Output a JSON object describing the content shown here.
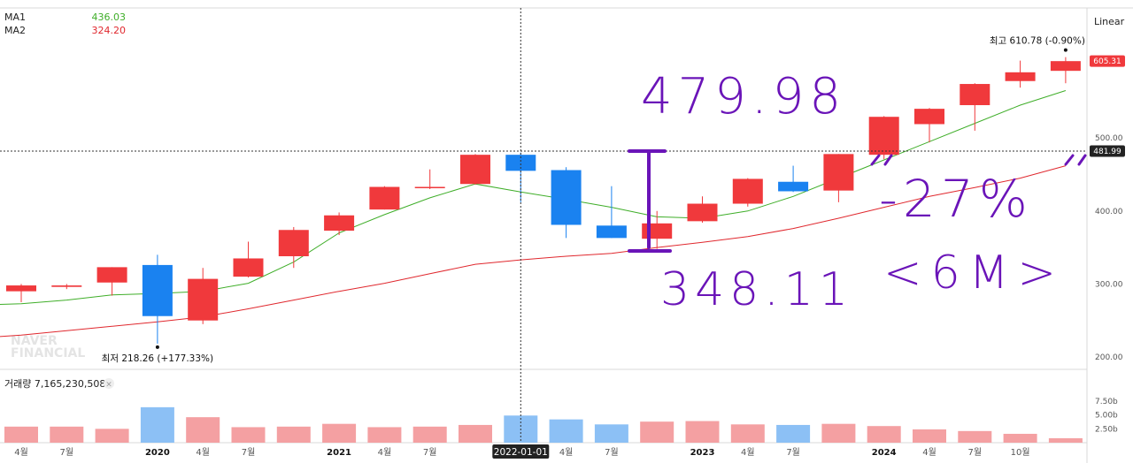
{
  "legend": {
    "ma1": {
      "label": "MA1",
      "value": "436.03",
      "color": "#3fae29"
    },
    "ma2": {
      "label": "MA2",
      "value": "324.20",
      "color": "#e0282e"
    }
  },
  "scale_mode": "Linear",
  "watermark": [
    "NAVER",
    "FINANCIAL"
  ],
  "price_badges": {
    "last": "605.31",
    "crosshair": "481.99"
  },
  "y_ticks": [
    {
      "value": 500,
      "label": "500.00"
    },
    {
      "value": 400,
      "label": "400.00"
    },
    {
      "value": 300,
      "label": "300.00"
    },
    {
      "value": 200,
      "label": "200.00"
    }
  ],
  "annotations": {
    "high": "최고 610.78 (-0.90%)",
    "low": "최저 218.26 (+177.33%)"
  },
  "volume": {
    "label": "거래량 7,165,230,508",
    "close_glyph": "×",
    "ticks": [
      {
        "value": 7500000000,
        "label": "7.50b"
      },
      {
        "value": 5000000000,
        "label": "5.00b"
      },
      {
        "value": 2500000000,
        "label": "2.50b"
      }
    ]
  },
  "x_axis": {
    "labels": [
      {
        "slot": 0,
        "text": "4월",
        "bold": false
      },
      {
        "slot": 1,
        "text": "7월",
        "bold": false
      },
      {
        "slot": 3,
        "text": "2020",
        "bold": true
      },
      {
        "slot": 4,
        "text": "4월",
        "bold": false
      },
      {
        "slot": 5,
        "text": "7월",
        "bold": false
      },
      {
        "slot": 7,
        "text": "2021",
        "bold": true
      },
      {
        "slot": 8,
        "text": "4월",
        "bold": false
      },
      {
        "slot": 9,
        "text": "7월",
        "bold": false
      },
      {
        "slot": 12,
        "text": "4월",
        "bold": false
      },
      {
        "slot": 13,
        "text": "7월",
        "bold": false
      },
      {
        "slot": 15,
        "text": "2023",
        "bold": true
      },
      {
        "slot": 16,
        "text": "4월",
        "bold": false
      },
      {
        "slot": 17,
        "text": "7월",
        "bold": false
      },
      {
        "slot": 19,
        "text": "2024",
        "bold": true
      },
      {
        "slot": 20,
        "text": "4월",
        "bold": false
      },
      {
        "slot": 21,
        "text": "7월",
        "bold": false
      },
      {
        "slot": 22,
        "text": "10월",
        "bold": false
      }
    ],
    "crosshair_date": "2022-01-01"
  },
  "handwriting": {
    "top_value": "479.98",
    "bottom_value": "348.11",
    "change": "-27%",
    "period": "<6M>",
    "color": "#6a14b8"
  },
  "colors": {
    "up": "#f0393c",
    "down": "#1a82f0",
    "up_volume": "#f4a0a2",
    "down_volume": "#8cc0f5"
  },
  "chart_data": {
    "type": "candlestick",
    "interval": "quarterly",
    "y_scale": "linear",
    "price_range": [
      190,
      640
    ],
    "crosshair_price": 481.99,
    "crosshair_slot": 11,
    "series": [
      {
        "name": "candles",
        "ohlc": [
          {
            "o": 290,
            "h": 300,
            "l": 275,
            "c": 298
          },
          {
            "o": 296,
            "h": 300,
            "l": 293,
            "c": 298
          },
          {
            "o": 302,
            "h": 323,
            "l": 284,
            "c": 323
          },
          {
            "o": 326,
            "h": 340,
            "l": 218.26,
            "c": 256
          },
          {
            "o": 250,
            "h": 322,
            "l": 245,
            "c": 307
          },
          {
            "o": 310,
            "h": 358,
            "l": 309,
            "c": 335
          },
          {
            "o": 338,
            "h": 378,
            "l": 322,
            "c": 374
          },
          {
            "o": 373,
            "h": 398,
            "l": 367,
            "c": 394
          },
          {
            "o": 402,
            "h": 434,
            "l": 402,
            "c": 433
          },
          {
            "o": 433,
            "h": 457,
            "l": 430,
            "c": 433
          },
          {
            "o": 437,
            "h": 478,
            "l": 436,
            "c": 477
          },
          {
            "o": 477,
            "h": 480,
            "l": 412,
            "c": 455
          },
          {
            "o": 456,
            "h": 460,
            "l": 363,
            "c": 381
          },
          {
            "o": 380,
            "h": 434,
            "l": 363,
            "c": 363
          },
          {
            "o": 362,
            "h": 400,
            "l": 348.11,
            "c": 383
          },
          {
            "o": 386,
            "h": 420,
            "l": 384,
            "c": 410
          },
          {
            "o": 410,
            "h": 445,
            "l": 406,
            "c": 444
          },
          {
            "o": 440,
            "h": 462,
            "l": 426,
            "c": 427
          },
          {
            "o": 428,
            "h": 478,
            "l": 412,
            "c": 478
          },
          {
            "o": 477,
            "h": 530,
            "l": 471,
            "c": 529
          },
          {
            "o": 519,
            "h": 541,
            "l": 494,
            "c": 540
          },
          {
            "o": 545,
            "h": 575,
            "l": 510,
            "c": 574
          },
          {
            "o": 578,
            "h": 606,
            "l": 569,
            "c": 590
          },
          {
            "o": 592,
            "h": 610.78,
            "l": 575,
            "c": 605.31
          }
        ]
      },
      {
        "name": "MA1",
        "values": [
          273,
          278,
          285,
          287,
          290,
          301,
          330,
          370,
          395,
          418,
          437,
          426,
          416,
          405,
          392,
          390,
          400,
          420,
          445,
          470,
          495,
          520,
          545,
          565
        ]
      },
      {
        "name": "MA2",
        "values": [
          230,
          236,
          242,
          248,
          255,
          266,
          278,
          290,
          301,
          314,
          327,
          333,
          338,
          342,
          350,
          357,
          365,
          376,
          390,
          405,
          420,
          432,
          445,
          462
        ]
      },
      {
        "name": "volume",
        "values": [
          2.9,
          2.9,
          2.5,
          6.4,
          4.6,
          2.8,
          2.9,
          3.4,
          2.8,
          2.9,
          3.2,
          4.9,
          4.2,
          3.3,
          3.8,
          3.9,
          3.3,
          3.2,
          3.4,
          3.0,
          2.4,
          2.1,
          1.6,
          0.8
        ]
      }
    ],
    "volume_unit": "billion",
    "volume_range": [
      0,
      9
    ]
  }
}
